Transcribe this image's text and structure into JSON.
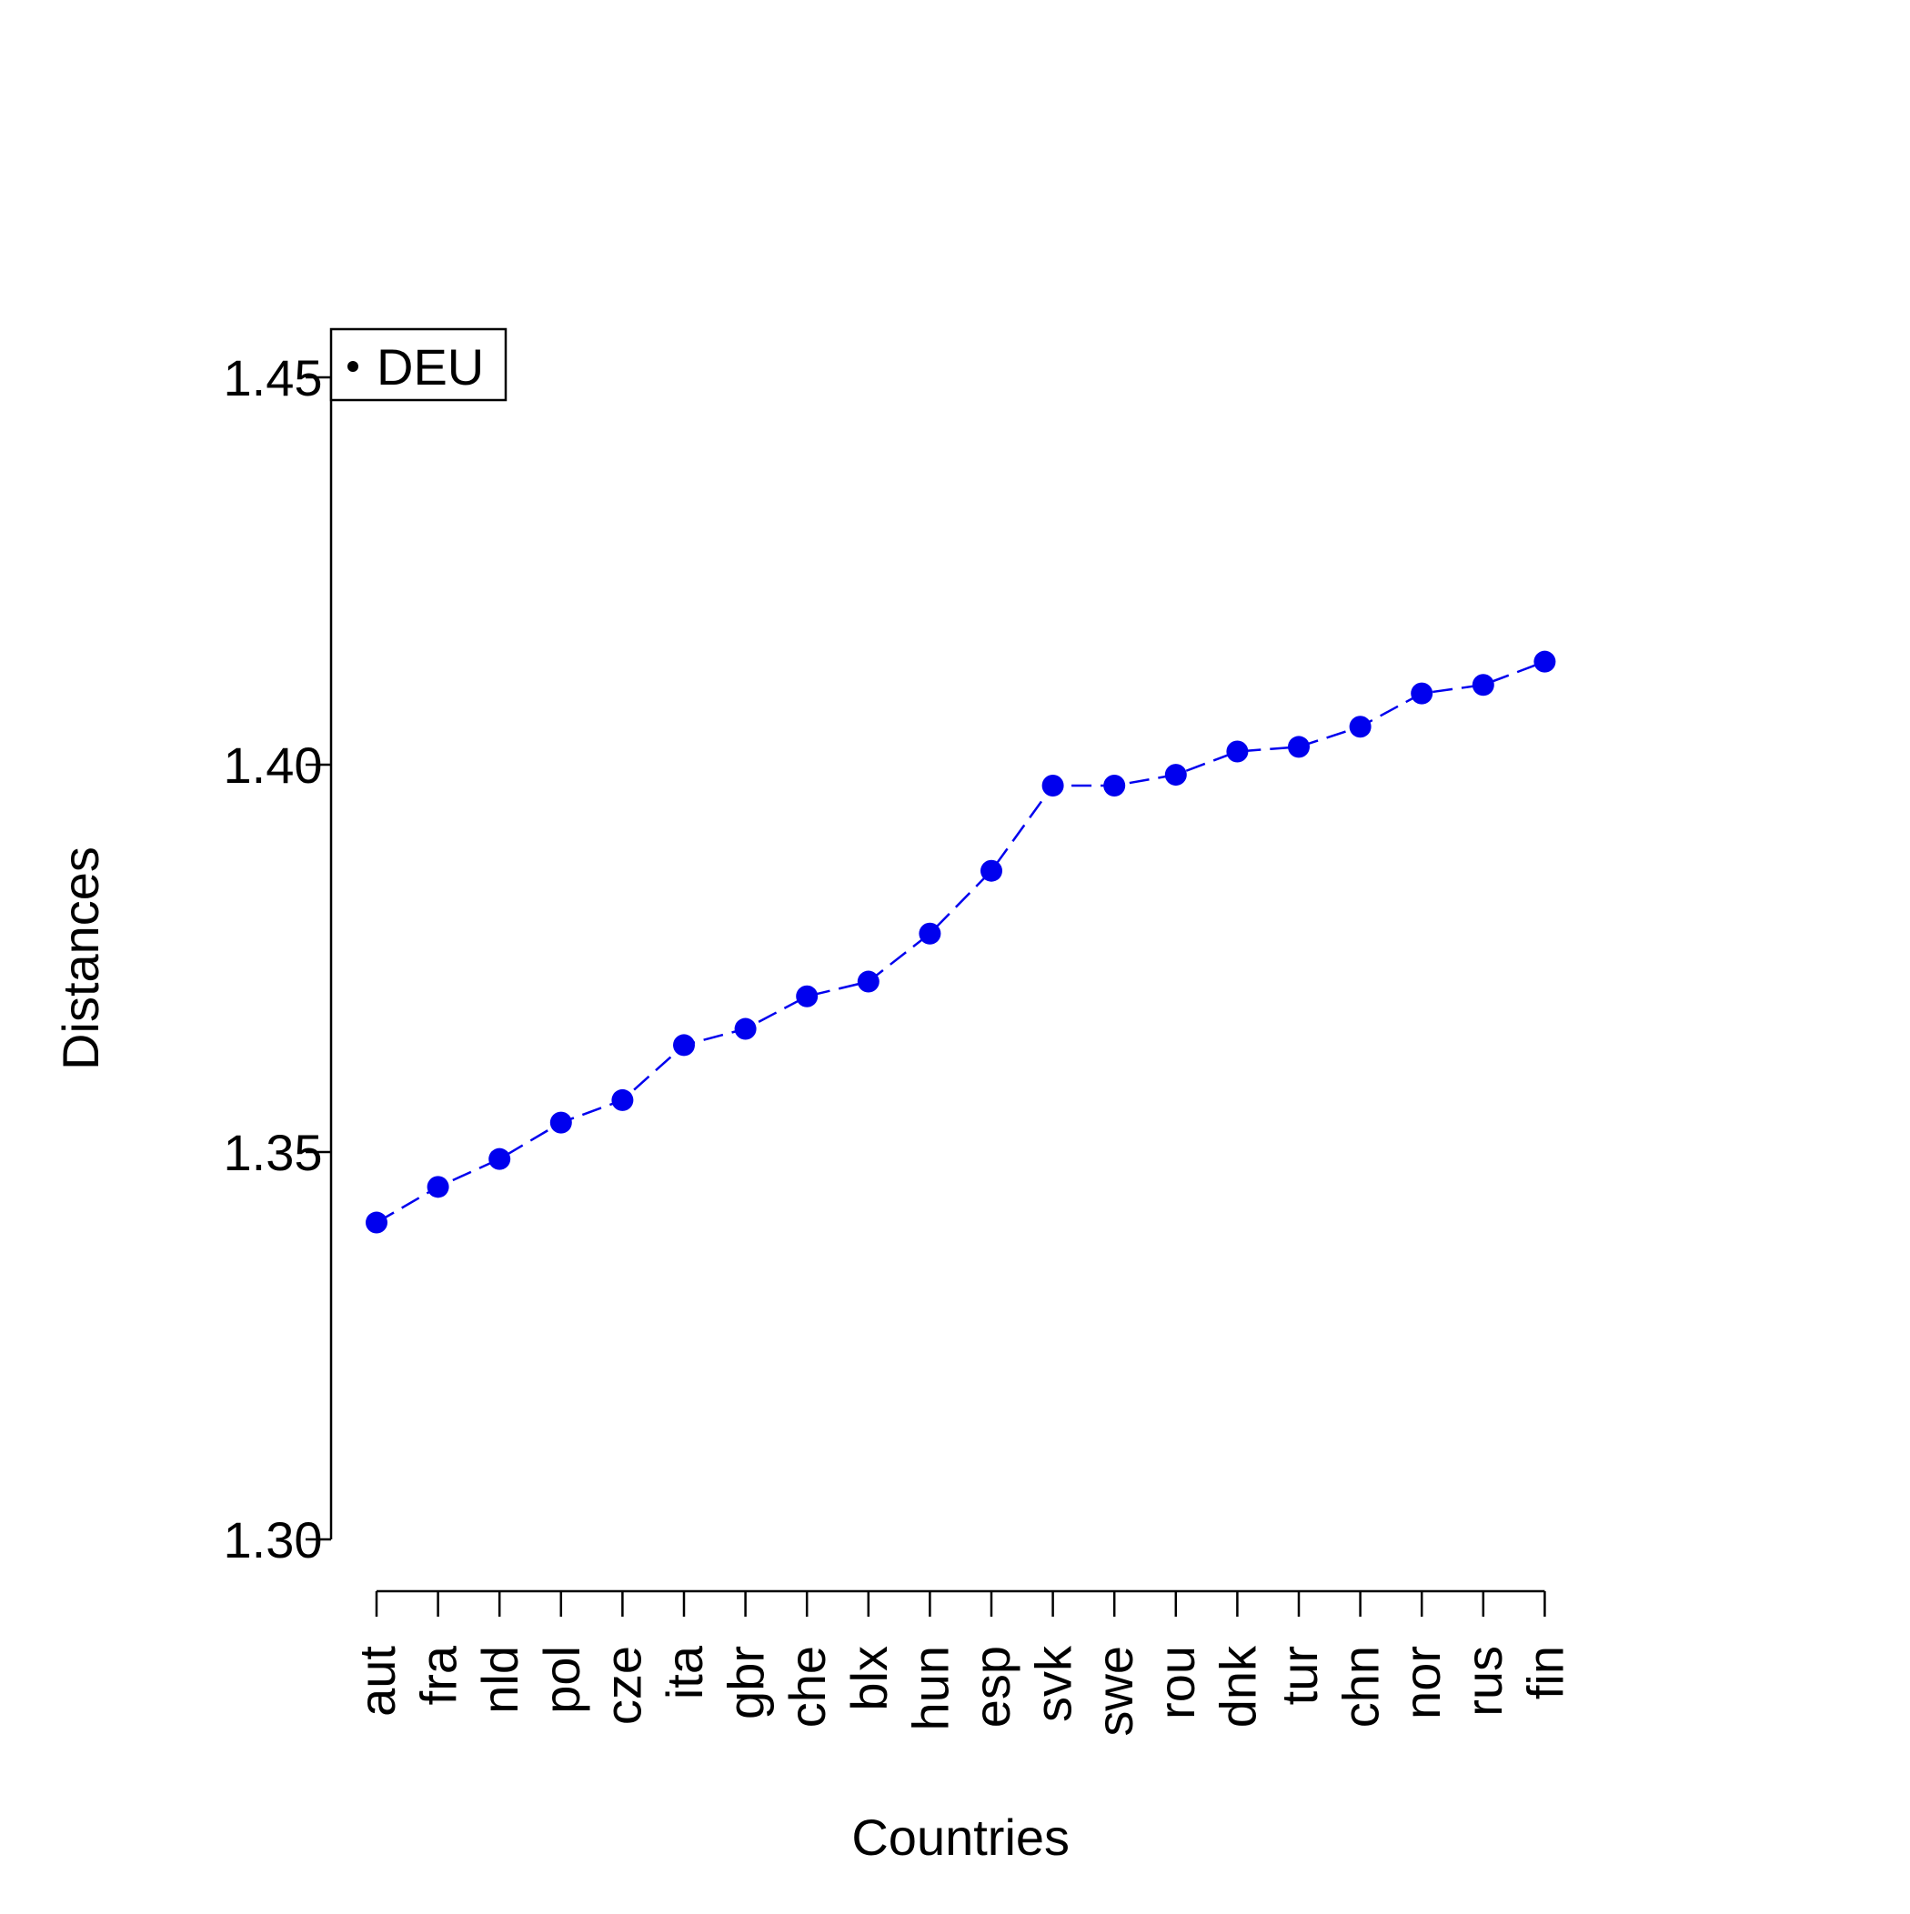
{
  "chart_data": {
    "type": "line",
    "title": "",
    "xlabel": "Countries",
    "ylabel": "Distances",
    "categories": [
      "aut",
      "fra",
      "nld",
      "pol",
      "cze",
      "ita",
      "gbr",
      "che",
      "blx",
      "hun",
      "esp",
      "svk",
      "swe",
      "rou",
      "dnk",
      "tur",
      "chn",
      "nor",
      "rus",
      "fin"
    ],
    "series": [
      {
        "name": "",
        "color": "#0000ee",
        "values": [
          1.3409,
          1.3455,
          1.3491,
          1.3538,
          1.3567,
          1.3638,
          1.3659,
          1.3701,
          1.372,
          1.3782,
          1.3863,
          1.3973,
          1.3973,
          1.3987,
          1.4017,
          1.4023,
          1.4049,
          1.4092,
          1.4103,
          1.4133
        ]
      }
    ],
    "ylim": [
      1.3,
      1.45
    ],
    "yticks": [
      "1.30",
      "1.35",
      "1.40",
      "1.45"
    ],
    "grid": false,
    "legend": {
      "placement": "top-left",
      "entries": [
        "DEU"
      ]
    }
  }
}
